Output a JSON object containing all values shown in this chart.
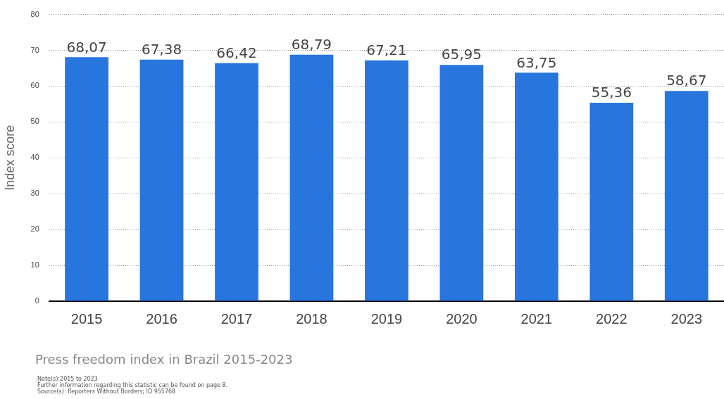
{
  "chart_data": {
    "type": "bar",
    "title": "Press freedom index in Brazil 2015-2023",
    "ylabel": "Index score",
    "categories": [
      "2015",
      "2016",
      "2017",
      "2018",
      "2019",
      "2020",
      "2021",
      "2022",
      "2023"
    ],
    "values": [
      68.07,
      67.38,
      66.42,
      68.79,
      67.21,
      65.95,
      63.75,
      55.36,
      58.67
    ],
    "value_labels": [
      "68,07",
      "67,38",
      "66,42",
      "68,79",
      "67,21",
      "65,95",
      "63,75",
      "55,36",
      "58,67"
    ],
    "color": "#2876dd",
    "ylim": [
      0,
      80
    ],
    "yticks": [
      0,
      10,
      20,
      30,
      40,
      50,
      60,
      70,
      80
    ],
    "grid": "y",
    "legend": false,
    "annotations": [
      "Note(s):2015 to 2023",
      "Further information regarding this statistic can be found on page 8.",
      "Source(s): Reporters Without Borders; ID 955768"
    ]
  }
}
